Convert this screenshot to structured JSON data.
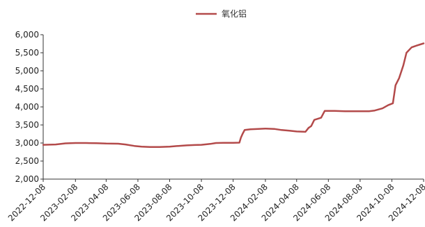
{
  "chart_data": {
    "type": "line",
    "title": "",
    "xlabel": "",
    "ylabel": "",
    "legend": {
      "placement": "top-center",
      "entries": [
        "氧化铝"
      ]
    },
    "grid": false,
    "ylim": [
      2000,
      6000
    ],
    "y_ticks": [
      2000,
      2500,
      3000,
      3500,
      4000,
      4500,
      5000,
      5500,
      6000
    ],
    "y_tick_labels": [
      "2,000",
      "2,500",
      "3,000",
      "3,500",
      "4,000",
      "4,500",
      "5,000",
      "5,500",
      "6,000"
    ],
    "x_range": [
      "2022-12-08",
      "2024-12-08"
    ],
    "x_ticks": [
      "2022-12-08",
      "2023-02-08",
      "2023-04-08",
      "2023-06-08",
      "2023-08-08",
      "2023-10-08",
      "2023-12-08",
      "2024-02-08",
      "2024-04-08",
      "2024-06-08",
      "2024-08-08",
      "2024-10-08",
      "2024-12-08"
    ],
    "series": [
      {
        "name": "氧化铝",
        "color": "#b34a4a",
        "points": [
          [
            "2022-12-08",
            2950
          ],
          [
            "2023-01-01",
            2960
          ],
          [
            "2023-01-20",
            2990
          ],
          [
            "2023-02-08",
            3000
          ],
          [
            "2023-03-01",
            3000
          ],
          [
            "2023-03-20",
            2995
          ],
          [
            "2023-04-08",
            2985
          ],
          [
            "2023-05-01",
            2980
          ],
          [
            "2023-05-15",
            2960
          ],
          [
            "2023-06-01",
            2920
          ],
          [
            "2023-06-15",
            2900
          ],
          [
            "2023-07-01",
            2890
          ],
          [
            "2023-07-20",
            2890
          ],
          [
            "2023-08-08",
            2900
          ],
          [
            "2023-08-25",
            2920
          ],
          [
            "2023-09-10",
            2935
          ],
          [
            "2023-09-25",
            2945
          ],
          [
            "2023-10-08",
            2950
          ],
          [
            "2023-10-25",
            2975
          ],
          [
            "2023-11-05",
            3000
          ],
          [
            "2023-11-20",
            3005
          ],
          [
            "2023-12-08",
            3005
          ],
          [
            "2023-12-20",
            3010
          ],
          [
            "2023-12-23",
            3150
          ],
          [
            "2023-12-26",
            3250
          ],
          [
            "2023-12-30",
            3360
          ],
          [
            "2024-01-10",
            3380
          ],
          [
            "2024-01-25",
            3390
          ],
          [
            "2024-02-08",
            3400
          ],
          [
            "2024-02-25",
            3390
          ],
          [
            "2024-03-10",
            3360
          ],
          [
            "2024-03-25",
            3340
          ],
          [
            "2024-04-08",
            3320
          ],
          [
            "2024-04-25",
            3310
          ],
          [
            "2024-05-01",
            3420
          ],
          [
            "2024-05-06",
            3470
          ],
          [
            "2024-05-12",
            3640
          ],
          [
            "2024-05-25",
            3700
          ],
          [
            "2024-06-01",
            3890
          ],
          [
            "2024-06-20",
            3890
          ],
          [
            "2024-07-10",
            3880
          ],
          [
            "2024-08-08",
            3880
          ],
          [
            "2024-08-25",
            3880
          ],
          [
            "2024-09-05",
            3900
          ],
          [
            "2024-09-20",
            3960
          ],
          [
            "2024-10-01",
            4050
          ],
          [
            "2024-10-10",
            4100
          ],
          [
            "2024-10-15",
            4600
          ],
          [
            "2024-10-22",
            4800
          ],
          [
            "2024-10-30",
            5150
          ],
          [
            "2024-11-05",
            5500
          ],
          [
            "2024-11-15",
            5650
          ],
          [
            "2024-11-25",
            5700
          ],
          [
            "2024-12-08",
            5760
          ]
        ]
      }
    ]
  }
}
